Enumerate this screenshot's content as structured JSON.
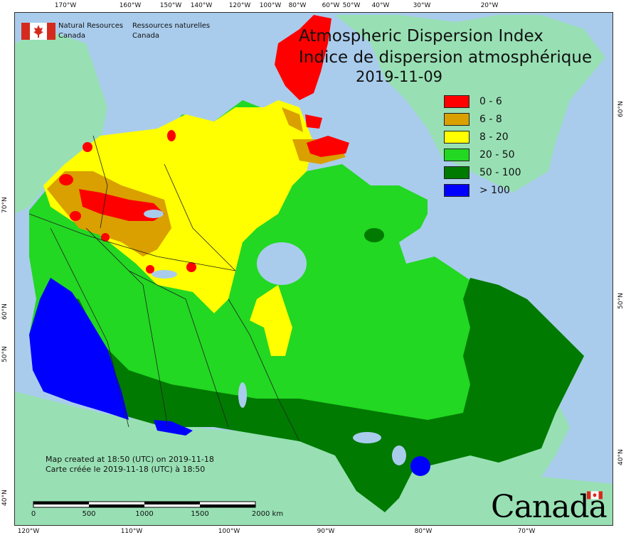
{
  "title": {
    "english": "Atmospheric Dispersion Index",
    "french": "Indice de dispersion atmosphérique",
    "date": "2019-11-09"
  },
  "legend": {
    "items": [
      {
        "label": "0 - 6",
        "color": "#ff0000"
      },
      {
        "label": "6 - 8",
        "color": "#d9a000"
      },
      {
        "label": "8 - 20",
        "color": "#ffff00"
      },
      {
        "label": "20 - 50",
        "color": "#22d822"
      },
      {
        "label": "50 - 100",
        "color": "#007a00"
      },
      {
        "label": "> 100",
        "color": "#0000ff"
      }
    ]
  },
  "agency": {
    "name_en_line1": "Natural Resources",
    "name_en_line2": "Canada",
    "name_fr_line1": "Ressources naturelles",
    "name_fr_line2": "Canada"
  },
  "credits": {
    "line_en": "Map created at 18:50 (UTC) on 2019-11-18",
    "line_fr": "Carte créée le 2019-11-18 (UTC) à 18:50"
  },
  "scale_bar": {
    "labels": [
      "0",
      "500",
      "1000",
      "1500",
      "2000 km"
    ]
  },
  "wordmark": "Canada",
  "ticks": {
    "top": [
      "170°W",
      "160°W",
      "150°W",
      "140°W",
      "120°W",
      "100°W",
      "80°W",
      "60°W",
      "50°W",
      "40°W",
      "30°W",
      "20°W"
    ],
    "bottom": [
      "120°W",
      "110°W",
      "100°W",
      "90°W",
      "80°W",
      "70°W"
    ],
    "left": [
      "70°N",
      "60°N",
      "50°N",
      "40°N"
    ],
    "right": [
      "60°N",
      "50°N",
      "40°N"
    ]
  },
  "colors": {
    "ocean": "#a9ccec",
    "land_outside": "#98e0b4"
  }
}
